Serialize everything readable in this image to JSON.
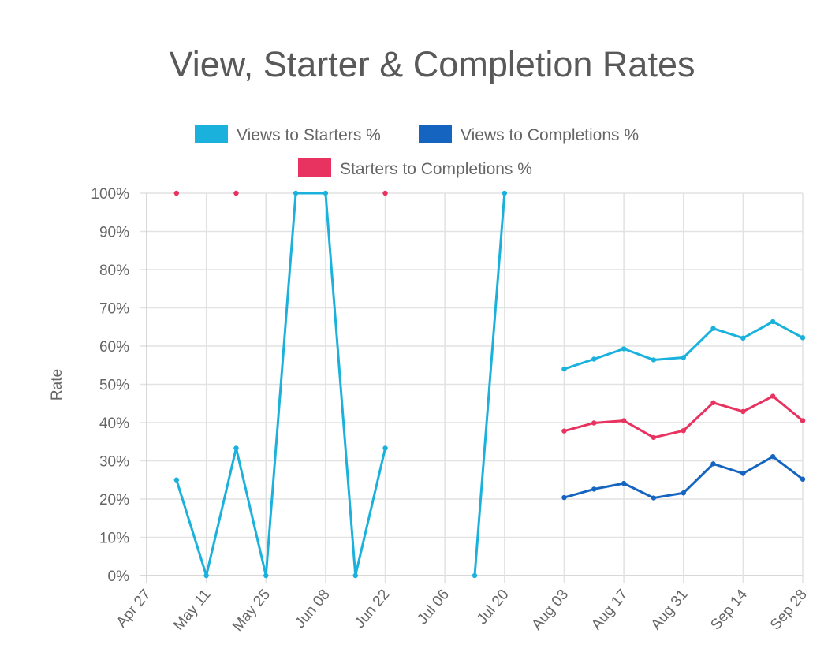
{
  "chart_data": {
    "type": "line",
    "title": "View, Starter & Completion Rates",
    "xlabel": "",
    "ylabel": "Rate",
    "ylim": [
      0,
      100
    ],
    "y_ticks": [
      "0%",
      "10%",
      "20%",
      "30%",
      "40%",
      "50%",
      "60%",
      "70%",
      "80%",
      "90%",
      "100%"
    ],
    "x_ticks": [
      "Apr 27",
      "May 11",
      "May 25",
      "Jun 08",
      "Jun 22",
      "Jul 06",
      "Jul 20",
      "Aug 03",
      "Aug 17",
      "Aug 31",
      "Sep 14",
      "Sep 28"
    ],
    "x": [
      "May 04",
      "May 11",
      "May 18",
      "May 25",
      "Jun 01",
      "Jun 08",
      "Jun 15",
      "Jun 22",
      "Jun 29",
      "Jul 06",
      "Jul 13",
      "Jul 20",
      "Jul 27",
      "Aug 03",
      "Aug 10",
      "Aug 17",
      "Aug 24",
      "Aug 31",
      "Sep 07",
      "Sep 14",
      "Sep 21",
      "Sep 28"
    ],
    "grid": true,
    "legend": "top",
    "series": [
      {
        "name": "Views to Completions %",
        "color": "#1565c0",
        "values": [
          null,
          null,
          null,
          null,
          null,
          null,
          null,
          null,
          null,
          null,
          null,
          null,
          null,
          20.4,
          22.6,
          24.1,
          20.3,
          21.6,
          29.2,
          26.7,
          31.1,
          25.2
        ]
      },
      {
        "name": "Starters to Completions %",
        "color": "#e8325f",
        "values": [
          100,
          null,
          100,
          null,
          null,
          null,
          null,
          100,
          null,
          null,
          null,
          null,
          null,
          37.8,
          39.9,
          40.5,
          36.1,
          37.9,
          45.2,
          42.9,
          46.9,
          40.5
        ]
      },
      {
        "name": "Views to Starters %",
        "color": "#1ab2dc",
        "values": [
          25,
          0,
          33.3,
          0,
          100,
          100,
          0,
          33.3,
          null,
          null,
          0,
          100,
          null,
          54.0,
          56.6,
          59.3,
          56.4,
          57.0,
          64.6,
          62.1,
          66.4,
          62.2
        ]
      }
    ]
  }
}
